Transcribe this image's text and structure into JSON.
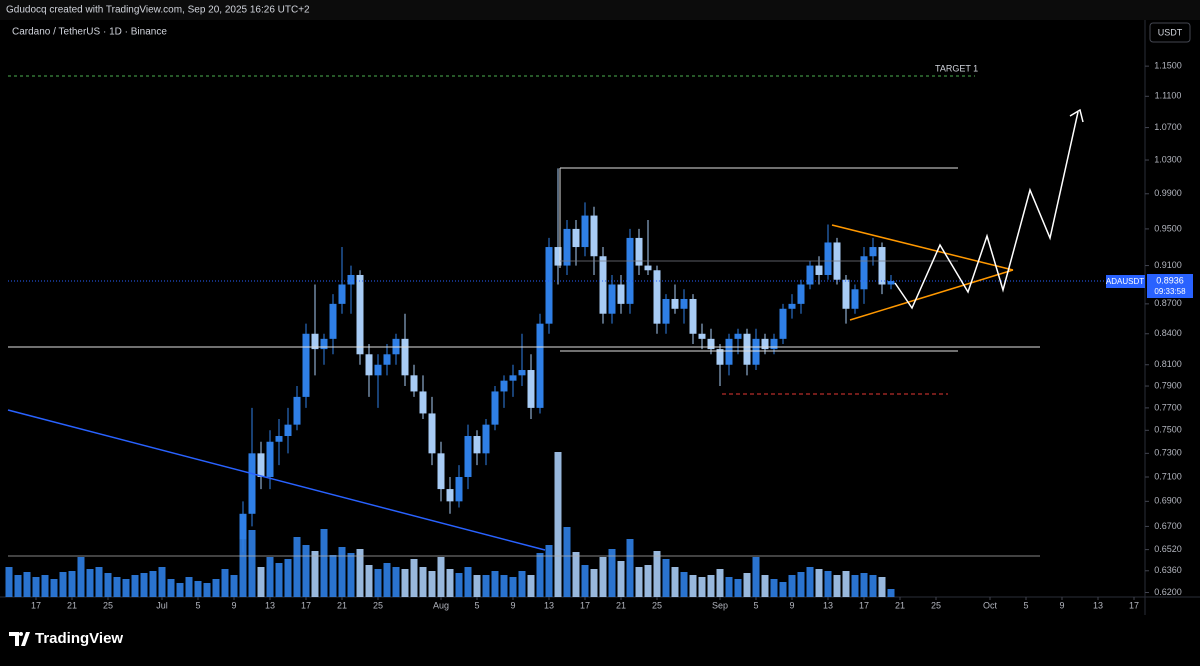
{
  "header": {
    "credit": "Gdudocq created with TradingView.com, Sep 20, 2025 16:26 UTC+2",
    "logo": "TradingView"
  },
  "chart_data": {
    "type": "candlestick",
    "title": "Cardano / TetherUS · 1D · Binance",
    "currency": "USDT",
    "symbol": "ADAUSDT",
    "countdown": "09:33:58",
    "annotation": "TARGET 1",
    "log_scale": true,
    "up_color": "#2f7fe6",
    "down_color": "#a8ccf5",
    "ylim": [
      0.616,
      1.214
    ],
    "yticks": [
      {
        "value": 1.15,
        "label": "1.1500"
      },
      {
        "value": 1.11,
        "label": "1.1100"
      },
      {
        "value": 1.07,
        "label": "1.0700"
      },
      {
        "value": 1.03,
        "label": "1.0300"
      },
      {
        "value": 0.99,
        "label": "0.9900"
      },
      {
        "value": 0.95,
        "label": "0.9500"
      },
      {
        "value": 0.91,
        "label": "0.9100"
      },
      {
        "value": 0.87,
        "label": "0.8700"
      },
      {
        "value": 0.84,
        "label": "0.8400"
      },
      {
        "value": 0.81,
        "label": "0.8100"
      },
      {
        "value": 0.79,
        "label": "0.7900"
      },
      {
        "value": 0.77,
        "label": "0.7700"
      },
      {
        "value": 0.75,
        "label": "0.7500"
      },
      {
        "value": 0.73,
        "label": "0.7300"
      },
      {
        "value": 0.71,
        "label": "0.7100"
      },
      {
        "value": 0.69,
        "label": "0.6900"
      },
      {
        "value": 0.67,
        "label": "0.6700"
      },
      {
        "value": 0.652,
        "label": "0.6520"
      },
      {
        "value": 0.636,
        "label": "0.6360"
      },
      {
        "value": 0.62,
        "label": "0.6200"
      }
    ],
    "xticks": [
      {
        "value": "Jun 17",
        "label": "17"
      },
      {
        "value": "Jun 21",
        "label": "21"
      },
      {
        "value": "Jun 25",
        "label": "25"
      },
      {
        "value": "Jul 1",
        "label": "Jul"
      },
      {
        "value": "Jul 5",
        "label": "5"
      },
      {
        "value": "Jul 9",
        "label": "9"
      },
      {
        "value": "Jul 13",
        "label": "13"
      },
      {
        "value": "Jul 17",
        "label": "17"
      },
      {
        "value": "Jul 21",
        "label": "21"
      },
      {
        "value": "Jul 25",
        "label": "25"
      },
      {
        "value": "Aug 1",
        "label": "Aug"
      },
      {
        "value": "Aug 5",
        "label": "5"
      },
      {
        "value": "Aug 9",
        "label": "9"
      },
      {
        "value": "Aug 13",
        "label": "13"
      },
      {
        "value": "Aug 17",
        "label": "17"
      },
      {
        "value": "Aug 21",
        "label": "21"
      },
      {
        "value": "Aug 25",
        "label": "25"
      },
      {
        "value": "Sep 1",
        "label": "Sep"
      },
      {
        "value": "Sep 5",
        "label": "5"
      },
      {
        "value": "Sep 9",
        "label": "9"
      },
      {
        "value": "Sep 13",
        "label": "13"
      },
      {
        "value": "Sep 17",
        "label": "17"
      },
      {
        "value": "Sep 21",
        "label": "21"
      },
      {
        "value": "Sep 25",
        "label": "25"
      },
      {
        "value": "Oct 1",
        "label": "Oct"
      },
      {
        "value": "Oct 5",
        "label": "5"
      },
      {
        "value": "Oct 9",
        "label": "9"
      },
      {
        "value": "Oct 13",
        "label": "13"
      },
      {
        "value": "Oct 17",
        "label": "17"
      }
    ],
    "x": [
      "Jun 14",
      "Jun 15",
      "Jun 16",
      "Jun 17",
      "Jun 18",
      "Jun 19",
      "Jun 20",
      "Jun 21",
      "Jun 22",
      "Jun 23",
      "Jun 24",
      "Jun 25",
      "Jun 26",
      "Jun 27",
      "Jun 28",
      "Jun 29",
      "Jun 30",
      "Jul 1",
      "Jul 2",
      "Jul 3",
      "Jul 4",
      "Jul 5",
      "Jul 6",
      "Jul 7",
      "Jul 8",
      "Jul 9",
      "Jul 10",
      "Jul 11",
      "Jul 12",
      "Jul 13",
      "Jul 14",
      "Jul 15",
      "Jul 16",
      "Jul 17",
      "Jul 18",
      "Jul 19",
      "Jul 20",
      "Jul 21",
      "Jul 22",
      "Jul 23",
      "Jul 24",
      "Jul 25",
      "Jul 26",
      "Jul 27",
      "Jul 28",
      "Jul 29",
      "Jul 30",
      "Jul 31",
      "Aug 1",
      "Aug 2",
      "Aug 3",
      "Aug 4",
      "Aug 5",
      "Aug 6",
      "Aug 7",
      "Aug 8",
      "Aug 9",
      "Aug 10",
      "Aug 11",
      "Aug 12",
      "Aug 13",
      "Aug 14",
      "Aug 15",
      "Aug 16",
      "Aug 17",
      "Aug 18",
      "Aug 19",
      "Aug 20",
      "Aug 21",
      "Aug 22",
      "Aug 23",
      "Aug 24",
      "Aug 25",
      "Aug 26",
      "Aug 27",
      "Aug 28",
      "Aug 29",
      "Aug 30",
      "Aug 31",
      "Sep 1",
      "Sep 2",
      "Sep 3",
      "Sep 4",
      "Sep 5",
      "Sep 6",
      "Sep 7",
      "Sep 8",
      "Sep 9",
      "Sep 10",
      "Sep 11",
      "Sep 12",
      "Sep 13",
      "Sep 14",
      "Sep 15",
      "Sep 16",
      "Sep 17",
      "Sep 18",
      "Sep 19",
      "Sep 20",
      "Sep 21",
      "Sep 22",
      "Sep 23",
      "Sep 24",
      "Sep 25",
      "Sep 26",
      "Sep 27",
      "Sep 28",
      "Sep 29",
      "Sep 30",
      "Oct 1",
      "Oct 2",
      "Oct 3",
      "Oct 4",
      "Oct 5",
      "Oct 6",
      "Oct 7",
      "Oct 8",
      "Oct 9",
      "Oct 10",
      "Oct 11",
      "Oct 12",
      "Oct 13",
      "Oct 14",
      "Oct 15",
      "Oct 16",
      "Oct 17"
    ],
    "open": [
      null,
      null,
      null,
      null,
      null,
      null,
      null,
      null,
      null,
      null,
      null,
      null,
      null,
      null,
      null,
      null,
      null,
      null,
      null,
      null,
      null,
      null,
      null,
      null,
      null,
      null,
      0.66,
      0.68,
      0.73,
      0.71,
      0.74,
      0.745,
      0.755,
      0.78,
      0.84,
      0.825,
      0.835,
      0.87,
      0.89,
      0.9,
      0.82,
      0.8,
      0.81,
      0.82,
      0.835,
      0.8,
      0.785,
      0.765,
      0.73,
      0.7,
      0.69,
      0.71,
      0.745,
      0.73,
      0.755,
      0.785,
      0.795,
      0.8,
      0.805,
      0.77,
      0.85,
      0.93,
      0.91,
      0.95,
      0.93,
      0.965,
      0.92,
      0.86,
      0.89,
      0.87,
      0.94,
      0.91,
      0.905,
      0.85,
      0.875,
      0.865,
      0.875,
      0.84,
      0.835,
      0.825,
      0.81,
      0.835,
      0.84,
      0.81,
      0.835,
      0.825,
      0.835,
      0.865,
      0.87,
      0.89,
      0.91,
      0.9,
      0.935,
      0.895,
      0.865,
      0.885,
      0.92,
      0.93,
      0.89,
      null,
      null,
      null,
      null,
      null,
      null,
      null,
      null,
      null,
      null,
      null,
      null,
      null,
      null,
      null,
      null,
      null,
      null,
      null,
      null,
      null,
      null,
      null,
      null,
      null,
      null,
      null
    ],
    "high": [
      null,
      null,
      null,
      null,
      null,
      null,
      null,
      null,
      null,
      null,
      null,
      null,
      null,
      null,
      null,
      null,
      null,
      null,
      null,
      null,
      null,
      null,
      null,
      null,
      null,
      null,
      0.69,
      0.77,
      0.74,
      0.75,
      0.76,
      0.77,
      0.79,
      0.85,
      0.89,
      0.84,
      0.88,
      0.93,
      0.91,
      0.905,
      0.83,
      0.82,
      0.83,
      0.84,
      0.86,
      0.81,
      0.8,
      0.78,
      0.74,
      0.71,
      0.72,
      0.755,
      0.75,
      0.76,
      0.79,
      0.8,
      0.81,
      0.84,
      0.82,
      0.86,
      0.94,
      1.02,
      0.96,
      0.96,
      0.98,
      0.975,
      0.93,
      0.9,
      0.9,
      0.95,
      0.95,
      0.96,
      0.91,
      0.88,
      0.89,
      0.885,
      0.88,
      0.85,
      0.845,
      0.83,
      0.84,
      0.845,
      0.845,
      0.845,
      0.84,
      0.84,
      0.87,
      0.88,
      0.895,
      0.915,
      0.92,
      0.955,
      0.94,
      0.9,
      0.89,
      0.93,
      0.94,
      0.935,
      0.9,
      null,
      null,
      null,
      null,
      null,
      null,
      null,
      null,
      null,
      null,
      null,
      null,
      null,
      null,
      null,
      null,
      null,
      null,
      null,
      null,
      null,
      null,
      null,
      null,
      null,
      null,
      null
    ],
    "low": [
      null,
      null,
      null,
      null,
      null,
      null,
      null,
      null,
      null,
      null,
      null,
      null,
      null,
      null,
      null,
      null,
      null,
      null,
      null,
      null,
      null,
      null,
      null,
      null,
      null,
      null,
      0.65,
      0.67,
      0.7,
      0.7,
      0.72,
      0.73,
      0.75,
      0.77,
      0.8,
      0.81,
      0.82,
      0.86,
      0.86,
      0.81,
      0.78,
      0.77,
      0.8,
      0.81,
      0.79,
      0.78,
      0.76,
      0.72,
      0.69,
      0.68,
      0.685,
      0.7,
      0.72,
      0.72,
      0.75,
      0.77,
      0.78,
      0.79,
      0.76,
      0.765,
      0.84,
      0.89,
      0.9,
      0.91,
      0.92,
      0.9,
      0.85,
      0.85,
      0.86,
      0.86,
      0.9,
      0.9,
      0.84,
      0.84,
      0.86,
      0.85,
      0.83,
      0.825,
      0.82,
      0.79,
      0.8,
      0.82,
      0.8,
      0.805,
      0.82,
      0.82,
      0.83,
      0.855,
      0.86,
      0.885,
      0.89,
      0.895,
      0.89,
      0.85,
      0.86,
      0.87,
      0.91,
      0.88,
      0.885,
      null,
      null,
      null,
      null,
      null,
      null,
      null,
      null,
      null,
      null,
      null,
      null,
      null,
      null,
      null,
      null,
      null,
      null,
      null,
      null,
      null,
      null,
      null,
      null,
      null,
      null,
      null
    ],
    "close": [
      null,
      null,
      null,
      null,
      null,
      null,
      null,
      null,
      null,
      null,
      null,
      null,
      null,
      null,
      null,
      null,
      null,
      null,
      null,
      null,
      null,
      null,
      null,
      null,
      null,
      null,
      0.68,
      0.73,
      0.71,
      0.74,
      0.745,
      0.755,
      0.78,
      0.84,
      0.825,
      0.835,
      0.87,
      0.89,
      0.9,
      0.82,
      0.8,
      0.81,
      0.82,
      0.835,
      0.8,
      0.785,
      0.765,
      0.73,
      0.7,
      0.69,
      0.71,
      0.745,
      0.73,
      0.755,
      0.785,
      0.795,
      0.8,
      0.805,
      0.77,
      0.85,
      0.93,
      0.91,
      0.95,
      0.93,
      0.965,
      0.92,
      0.86,
      0.89,
      0.87,
      0.94,
      0.91,
      0.905,
      0.85,
      0.875,
      0.865,
      0.875,
      0.84,
      0.835,
      0.825,
      0.81,
      0.835,
      0.84,
      0.81,
      0.835,
      0.825,
      0.835,
      0.865,
      0.87,
      0.89,
      0.91,
      0.9,
      0.935,
      0.895,
      0.865,
      0.885,
      0.92,
      0.93,
      0.89,
      0.8936,
      null,
      null,
      null,
      null,
      null,
      null,
      null,
      null,
      null,
      null,
      null,
      null,
      null,
      null,
      null,
      null,
      null,
      null,
      null,
      null,
      null,
      null,
      null,
      null,
      null,
      null,
      null
    ],
    "vlim": [
      0,
      150
    ],
    "volume": [
      30,
      22,
      25,
      20,
      22,
      18,
      25,
      26,
      40,
      28,
      30,
      24,
      20,
      18,
      22,
      24,
      26,
      30,
      18,
      14,
      20,
      16,
      14,
      18,
      28,
      22,
      82,
      67,
      30,
      40,
      34,
      38,
      60,
      52,
      46,
      68,
      42,
      50,
      44,
      48,
      32,
      28,
      34,
      30,
      28,
      38,
      30,
      26,
      40,
      28,
      24,
      30,
      22,
      22,
      26,
      22,
      20,
      26,
      22,
      44,
      52,
      145,
      70,
      45,
      32,
      28,
      40,
      48,
      36,
      58,
      30,
      32,
      46,
      38,
      30,
      25,
      22,
      20,
      22,
      28,
      20,
      18,
      24,
      40,
      22,
      18,
      15,
      22,
      25,
      30,
      28,
      26,
      22,
      26,
      22,
      24,
      22,
      20,
      8,
      null,
      null,
      null,
      null,
      null,
      null,
      null,
      null,
      null,
      null,
      null,
      null,
      null,
      null,
      null,
      null,
      null,
      null,
      null,
      null,
      null,
      null,
      null,
      null,
      null,
      null,
      null
    ]
  }
}
